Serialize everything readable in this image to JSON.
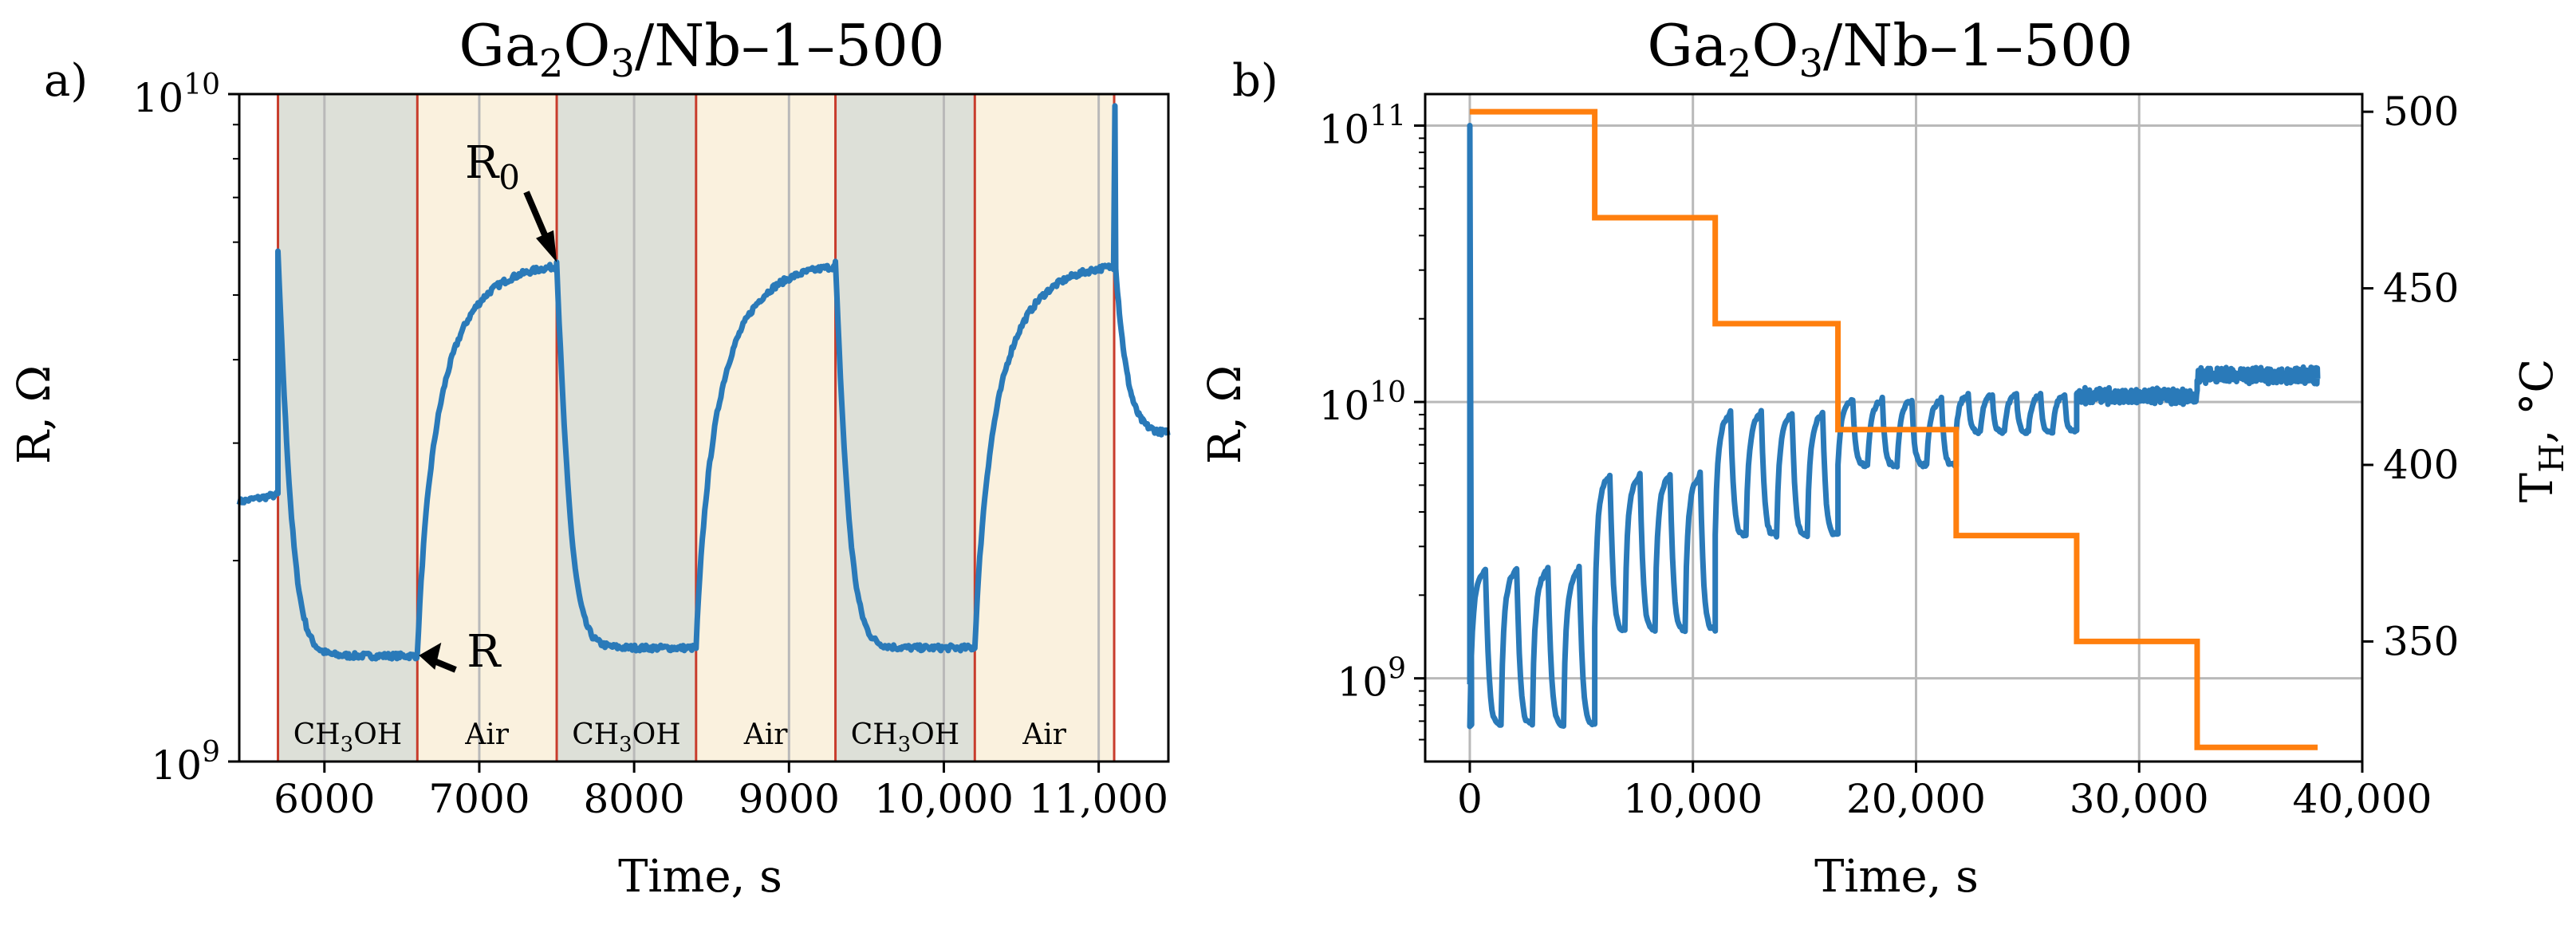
{
  "figure": {
    "panel_a_label": "a)",
    "panel_b_label": "b)"
  },
  "colors": {
    "series": "#2a7ab9",
    "temperature": "#ff7f0e",
    "gas_band": "#dde0d8",
    "air_band": "#faf1de",
    "boundary": "#c83c2c",
    "grid": "#b9b9b9"
  },
  "chart_data": [
    {
      "id": "a",
      "type": "line",
      "title_main": "Ga",
      "title_sub1": "2",
      "title_mid": "O",
      "title_sub2": "3",
      "title_tail": "/Nb–1–500",
      "xlabel": "Time, s",
      "ylabel": "R, Ω",
      "yscale": "log",
      "xlim": [
        5450,
        11450
      ],
      "ylim": [
        1000000000.0,
        10000000000.0
      ],
      "xticks": [
        6000,
        7000,
        8000,
        9000,
        10000,
        11000
      ],
      "xtick_labels": [
        "6000",
        "7000",
        "8000",
        "9000",
        "10,000",
        "11,000"
      ],
      "ytick_base": "10",
      "ytick_exps": [
        "9",
        "10"
      ],
      "regions": [
        {
          "x0": 5700,
          "x1": 6600,
          "gas": true,
          "label": "CH3OH"
        },
        {
          "x0": 6600,
          "x1": 7500,
          "gas": false,
          "label": "Air"
        },
        {
          "x0": 7500,
          "x1": 8400,
          "gas": true,
          "label": "CH3OH"
        },
        {
          "x0": 8400,
          "x1": 9300,
          "gas": false,
          "label": "Air"
        },
        {
          "x0": 9300,
          "x1": 10200,
          "gas": true,
          "label": "CH3OH"
        },
        {
          "x0": 10200,
          "x1": 11100,
          "gas": false,
          "label": "Air"
        }
      ],
      "region_formula": {
        "main": "CH",
        "sub": "3",
        "tail": "OH"
      },
      "annotations": {
        "r0_main": "R",
        "r0_sub": "0",
        "r_label": "R",
        "r0_point": [
          7500,
          5600000000.0
        ],
        "r_point": [
          6600,
          1450000000.0
        ]
      },
      "series": {
        "name": "R",
        "start_resistance": 2450000000.0,
        "start_time": 5450,
        "cycles": [
          {
            "t_on": 5700,
            "t_off": 6600,
            "peak": 5800000000.0,
            "floor": 1440000000.0,
            "recovery_max": 5600000000.0
          },
          {
            "t_on": 7500,
            "t_off": 8400,
            "peak": 5600000000.0,
            "floor": 1480000000.0,
            "recovery_max": 5600000000.0
          },
          {
            "t_on": 9300,
            "t_off": 10200,
            "peak": 5600000000.0,
            "floor": 1480000000.0,
            "recovery_max": 5600000000.0
          }
        ],
        "end_spike": {
          "t": 11100,
          "peak": 9600000000.0,
          "settle": 3100000000.0,
          "end_time": 11450
        }
      }
    },
    {
      "id": "b",
      "type": "line",
      "title_main": "Ga",
      "title_sub1": "2",
      "title_mid": "O",
      "title_sub2": "3",
      "title_tail": "/Nb–1–500",
      "xlabel": "Time, s",
      "ylabel_left": "R, Ω",
      "ylabel_right_main": "T",
      "ylabel_right_sub": "H",
      "ylabel_right_tail": ", °C",
      "xlim": [
        -2000,
        40000
      ],
      "ylim_left": [
        500000000.0,
        130000000000.0
      ],
      "ylim_right": [
        316,
        505
      ],
      "xticks": [
        0,
        10000,
        20000,
        30000,
        40000
      ],
      "xtick_labels": [
        "0",
        "10,000",
        "20,000",
        "30,000",
        "40,000"
      ],
      "yticks_right": [
        350,
        400,
        450,
        500
      ],
      "ytick_base": "10",
      "ytick_exps": [
        "9",
        "10",
        "11"
      ],
      "temperature_steps": [
        {
          "t0": 0,
          "t1": 5600,
          "T": 500
        },
        {
          "t0": 5600,
          "t1": 11000,
          "T": 470
        },
        {
          "t0": 11000,
          "t1": 16500,
          "T": 440
        },
        {
          "t0": 16500,
          "t1": 21800,
          "T": 410
        },
        {
          "t0": 21800,
          "t1": 27200,
          "T": 380
        },
        {
          "t0": 27200,
          "t1": 32600,
          "T": 350
        },
        {
          "t0": 32600,
          "t1": 38000,
          "T": 320
        }
      ],
      "resistance_blocks": [
        {
          "t0": 0,
          "t1": 5600,
          "base": 1000000000.0,
          "low": 680000000.0,
          "high": 2600000000.0,
          "start_spike": 100000000000.0
        },
        {
          "t0": 5600,
          "t1": 11000,
          "base": 2000000000.0,
          "low": 1500000000.0,
          "high": 5700000000.0
        },
        {
          "t0": 11000,
          "t1": 16500,
          "base": 4200000000.0,
          "low": 3300000000.0,
          "high": 9500000000.0
        },
        {
          "t0": 16500,
          "t1": 21800,
          "base": 7600000000.0,
          "low": 5900000000.0,
          "high": 10500000000.0
        },
        {
          "t0": 21800,
          "t1": 27200,
          "base": 8400000000.0,
          "low": 7800000000.0,
          "high": 10800000000.0
        },
        {
          "t0": 27200,
          "t1": 32600,
          "base": 10500000000.0,
          "low": 10000000000.0,
          "high": 11500000000.0
        },
        {
          "t0": 32600,
          "t1": 38000,
          "base": 12500000000.0,
          "low": 12200000000.0,
          "high": 13500000000.0
        }
      ]
    }
  ]
}
